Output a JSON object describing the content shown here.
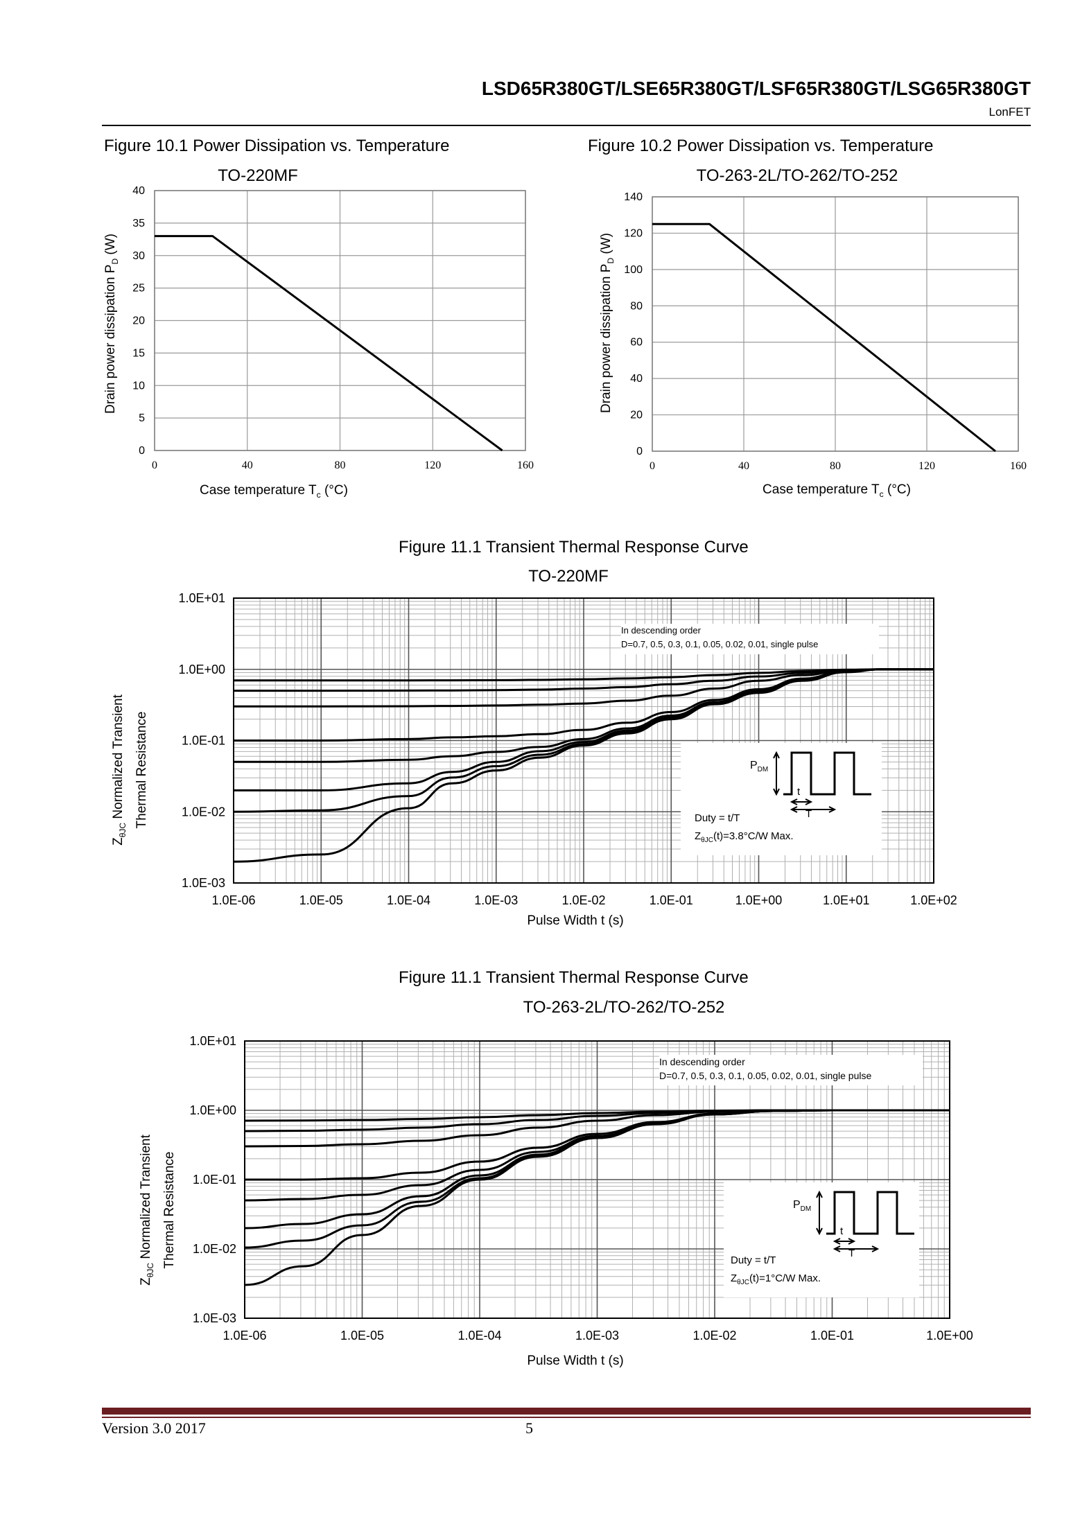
{
  "header": {
    "title": "LSD65R380GT/LSE65R380GT/LSF65R380GT/LSG65R380GT",
    "brand": "LonFET"
  },
  "footer": {
    "version": "Version 3.0    2017",
    "page": "5"
  },
  "colors": {
    "line": "#000000",
    "grid": "#9a9a9a",
    "footer_rule": "#6b1e22"
  },
  "fig10_1": {
    "caption": "Figure 10.1 Power Dissipation vs. Temperature",
    "subtitle": "TO-220MF",
    "ylabel": "Drain power dissipation P",
    "ylabel_sub": "D",
    "ylabel_unit": "(W)",
    "xlabel": "Case temperature T",
    "xlabel_sub": "c",
    "xlabel_unit": "(°C)"
  },
  "fig10_2": {
    "caption": "Figure 10.2 Power Dissipation vs. Temperature",
    "subtitle": "TO-263-2L/TO-262/TO-252",
    "ylabel": "Drain power dissipation P",
    "ylabel_sub": "D",
    "ylabel_unit": "(W)",
    "xlabel": "Case temperature T",
    "xlabel_sub": "c",
    "xlabel_unit": "(°C)"
  },
  "fig11_1a": {
    "caption": "Figure 11.1 Transient Thermal Response Curve",
    "subtitle": "TO-220MF",
    "ylabel_z": "Z",
    "ylabel_z_sub": "θJC",
    "ylabel_line1": "Normalized Transient",
    "ylabel_line2": "Thermal Resistance",
    "xlabel": "Pulse Width t (s)",
    "legend_line1": "In descending order",
    "legend_line2": "D=0.7, 0.5, 0.3, 0.1, 0.05, 0.02, 0.01, single pulse",
    "inset_pdm": "P",
    "inset_pdm_sub": "DM",
    "inset_t1": "t",
    "inset_T": "T",
    "inset_duty": "Duty = t/T",
    "inset_z": "Z",
    "inset_z_sub": "θJC",
    "inset_z_value": "(t)=3.8°C/W Max."
  },
  "fig11_1b": {
    "caption": "Figure 11.1 Transient Thermal Response Curve",
    "subtitle": "TO-263-2L/TO-262/TO-252",
    "ylabel_z": "Z",
    "ylabel_z_sub": "θJC",
    "ylabel_line1": "Normalized Transient",
    "ylabel_line2": "Thermal Resistance",
    "xlabel": "Pulse Width t (s)",
    "legend_line1": "In descending order",
    "legend_line2": "D=0.7, 0.5, 0.3, 0.1, 0.05, 0.02, 0.01, single pulse",
    "inset_pdm": "P",
    "inset_pdm_sub": "DM",
    "inset_t1": "t",
    "inset_T": "T",
    "inset_duty": "Duty = t/T",
    "inset_z": "Z",
    "inset_z_sub": "θJC",
    "inset_z_value": "(t)=1°C/W Max."
  },
  "chart_data": [
    {
      "id": "fig10_1",
      "type": "line",
      "title": "Figure 10.1 Power Dissipation vs. Temperature",
      "xlim": [
        0,
        160
      ],
      "ylim": [
        0,
        40
      ],
      "xticks": [
        0,
        40,
        80,
        120,
        160
      ],
      "xtick_labels": [
        "0",
        "40",
        "80",
        "120",
        "160"
      ],
      "yticks": [
        0,
        5,
        10,
        15,
        20,
        25,
        30,
        35,
        40
      ],
      "ytick_labels": [
        "0",
        "5",
        "10",
        "15",
        "20",
        "25",
        "30",
        "35",
        "40"
      ],
      "grid": true,
      "series": [
        {
          "name": "PD",
          "x": [
            0,
            25,
            150
          ],
          "y": [
            33,
            33,
            0
          ]
        }
      ]
    },
    {
      "id": "fig10_2",
      "type": "line",
      "title": "Figure 10.2 Power Dissipation vs. Temperature",
      "xlim": [
        0,
        160
      ],
      "ylim": [
        0,
        140
      ],
      "xticks": [
        0,
        40,
        80,
        120,
        160
      ],
      "xtick_labels": [
        "0",
        "40",
        "80",
        "120",
        "160"
      ],
      "yticks": [
        0,
        20,
        40,
        60,
        80,
        100,
        120,
        140
      ],
      "ytick_labels": [
        "0",
        "20",
        "40",
        "60",
        "80",
        "100",
        "120",
        "140"
      ],
      "grid": true,
      "series": [
        {
          "name": "PD",
          "x": [
            0,
            25,
            150
          ],
          "y": [
            125,
            125,
            0
          ]
        }
      ]
    },
    {
      "id": "fig11_1a",
      "type": "line",
      "scale": "log-log",
      "title": "Figure 11.1 Transient Thermal Response Curve",
      "xlim_exp": [
        -6,
        2
      ],
      "ylim_exp": [
        -3,
        1
      ],
      "xtick_labels": [
        "1.0E-06",
        "1.0E-05",
        "1.0E-04",
        "1.0E-03",
        "1.0E-02",
        "1.0E-01",
        "1.0E+00",
        "1.0E+01",
        "1.0E+02"
      ],
      "ytick_labels": [
        "1.0E-03",
        "1.0E-02",
        "1.0E-01",
        "1.0E+00",
        "1.0E+01"
      ],
      "grid": true,
      "x_log": [
        -6,
        -5,
        -4,
        -3.5,
        -3,
        -2.5,
        -2,
        -1.5,
        -1,
        -0.5,
        0,
        0.5,
        1,
        1.4,
        2
      ],
      "series": [
        {
          "name": "D=0.7",
          "y_log": [
            -0.155,
            -0.155,
            -0.155,
            -0.154,
            -0.152,
            -0.148,
            -0.14,
            -0.128,
            -0.11,
            -0.08,
            -0.05,
            -0.025,
            -0.005,
            0,
            0
          ]
        },
        {
          "name": "D=0.5",
          "y_log": [
            -0.3,
            -0.3,
            -0.298,
            -0.296,
            -0.292,
            -0.285,
            -0.27,
            -0.25,
            -0.21,
            -0.16,
            -0.1,
            -0.05,
            -0.01,
            0,
            0
          ]
        },
        {
          "name": "D=0.3",
          "y_log": [
            -0.52,
            -0.52,
            -0.518,
            -0.514,
            -0.508,
            -0.497,
            -0.48,
            -0.44,
            -0.37,
            -0.27,
            -0.16,
            -0.08,
            -0.015,
            0,
            0
          ]
        },
        {
          "name": "D=0.1",
          "y_log": [
            -1,
            -1,
            -0.98,
            -0.955,
            -0.94,
            -0.91,
            -0.85,
            -0.75,
            -0.6,
            -0.43,
            -0.28,
            -0.13,
            -0.025,
            0,
            0
          ]
        },
        {
          "name": "D=0.05",
          "y_log": [
            -1.3,
            -1.3,
            -1.27,
            -1.22,
            -1.16,
            -1.09,
            -0.98,
            -0.83,
            -0.65,
            -0.46,
            -0.3,
            -0.14,
            -0.03,
            0,
            0
          ]
        },
        {
          "name": "D=0.02",
          "y_log": [
            -1.7,
            -1.7,
            -1.6,
            -1.44,
            -1.3,
            -1.15,
            -1.02,
            -0.86,
            -0.67,
            -0.47,
            -0.31,
            -0.15,
            -0.03,
            0,
            0
          ]
        },
        {
          "name": "D=0.01",
          "y_log": [
            -2,
            -1.98,
            -1.78,
            -1.52,
            -1.36,
            -1.2,
            -1.05,
            -0.88,
            -0.69,
            -0.48,
            -0.32,
            -0.15,
            -0.03,
            0,
            0
          ]
        },
        {
          "name": "single pulse",
          "y_log": [
            -2.7,
            -2.6,
            -1.95,
            -1.6,
            -1.42,
            -1.24,
            -1.07,
            -0.9,
            -0.7,
            -0.49,
            -0.33,
            -0.16,
            -0.04,
            0,
            0
          ]
        }
      ]
    },
    {
      "id": "fig11_1b",
      "type": "line",
      "scale": "log-log",
      "title": "Figure 11.1 Transient Thermal Response Curve",
      "xlim_exp": [
        -6,
        0
      ],
      "ylim_exp": [
        -3,
        1
      ],
      "xtick_labels": [
        "1.0E-06",
        "1.0E-05",
        "1.0E-04",
        "1.0E-03",
        "1.0E-02",
        "1.0E-01",
        "1.0E+00"
      ],
      "ytick_labels": [
        "1.0E-03",
        "1.0E-02",
        "1.0E-01",
        "1.0E+00",
        "1.0E+01"
      ],
      "grid": true,
      "x_log": [
        -6,
        -5.5,
        -5,
        -4.5,
        -4,
        -3.5,
        -3,
        -2.5,
        -2,
        -1.5,
        -1,
        -0.5,
        0
      ],
      "series": [
        {
          "name": "D=0.7",
          "y_log": [
            -0.15,
            -0.148,
            -0.14,
            -0.125,
            -0.1,
            -0.07,
            -0.04,
            -0.02,
            -0.005,
            0,
            0,
            0,
            0
          ]
        },
        {
          "name": "D=0.5",
          "y_log": [
            -0.3,
            -0.295,
            -0.28,
            -0.25,
            -0.2,
            -0.14,
            -0.08,
            -0.04,
            -0.01,
            0,
            0,
            0,
            0
          ]
        },
        {
          "name": "D=0.3",
          "y_log": [
            -0.52,
            -0.515,
            -0.49,
            -0.44,
            -0.36,
            -0.25,
            -0.15,
            -0.07,
            -0.02,
            0,
            0,
            0,
            0
          ]
        },
        {
          "name": "D=0.1",
          "y_log": [
            -1,
            -1,
            -0.98,
            -0.9,
            -0.74,
            -0.54,
            -0.34,
            -0.17,
            -0.05,
            -0.01,
            0,
            0,
            0
          ]
        },
        {
          "name": "D=0.05",
          "y_log": [
            -1.3,
            -1.28,
            -1.22,
            -1.08,
            -0.86,
            -0.6,
            -0.37,
            -0.18,
            -0.05,
            -0.01,
            0,
            0,
            0
          ]
        },
        {
          "name": "D=0.02",
          "y_log": [
            -1.7,
            -1.64,
            -1.5,
            -1.24,
            -0.94,
            -0.64,
            -0.38,
            -0.19,
            -0.06,
            -0.01,
            0,
            0,
            0
          ]
        },
        {
          "name": "D=0.01",
          "y_log": [
            -1.98,
            -1.88,
            -1.66,
            -1.32,
            -0.98,
            -0.66,
            -0.39,
            -0.19,
            -0.06,
            -0.01,
            0,
            0,
            0
          ]
        },
        {
          "name": "single pulse",
          "y_log": [
            -2.52,
            -2.25,
            -1.8,
            -1.38,
            -1.0,
            -0.67,
            -0.4,
            -0.2,
            -0.06,
            -0.01,
            0,
            0,
            0
          ]
        }
      ]
    }
  ]
}
